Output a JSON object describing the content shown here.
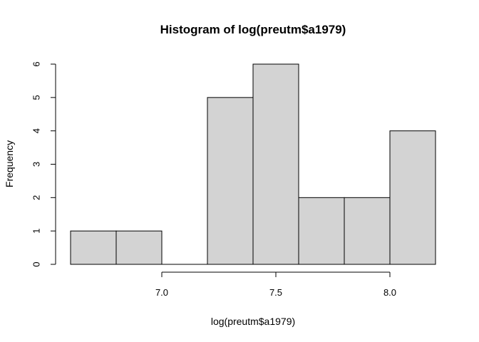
{
  "chart_data": {
    "type": "bar",
    "title": "Histogram of log(preutm$a1979)",
    "xlabel": "log(preutm$a1979)",
    "ylabel": "Frequency",
    "bins": [
      {
        "start": 6.6,
        "end": 6.8,
        "count": 1
      },
      {
        "start": 6.8,
        "end": 7.0,
        "count": 1
      },
      {
        "start": 7.0,
        "end": 7.2,
        "count": 0
      },
      {
        "start": 7.2,
        "end": 7.4,
        "count": 5
      },
      {
        "start": 7.4,
        "end": 7.6,
        "count": 6
      },
      {
        "start": 7.6,
        "end": 7.8,
        "count": 2
      },
      {
        "start": 7.8,
        "end": 8.0,
        "count": 2
      },
      {
        "start": 8.0,
        "end": 8.2,
        "count": 4
      }
    ],
    "xlim": [
      6.6,
      8.2
    ],
    "ylim": [
      0,
      6
    ],
    "x_ticks": [
      7.0,
      7.5,
      8.0
    ],
    "x_tick_labels": [
      "7.0",
      "7.5",
      "8.0"
    ],
    "y_ticks": [
      0,
      1,
      2,
      3,
      4,
      5,
      6
    ],
    "y_tick_labels": [
      "0",
      "1",
      "2",
      "3",
      "4",
      "5",
      "6"
    ],
    "bar_fill": "#d3d3d3",
    "bar_stroke": "#000000",
    "grid": false
  }
}
